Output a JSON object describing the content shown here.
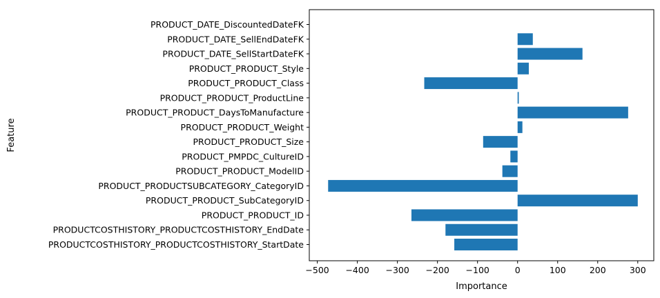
{
  "chart_data": {
    "type": "bar",
    "orientation": "horizontal",
    "xlabel": "Importance",
    "ylabel": "Feature",
    "xlim": [
      -520,
      340
    ],
    "xticks": [
      -500,
      -400,
      -300,
      -200,
      -100,
      0,
      100,
      200,
      300
    ],
    "xtick_labels": [
      "−500",
      "−400",
      "−300",
      "−200",
      "−100",
      "0",
      "100",
      "200",
      "300"
    ],
    "bar_color": "#1f77b4",
    "grid": false,
    "categories": [
      "PRODUCTCOSTHISTORY_PRODUCTCOSTHISTORY_StartDate",
      "PRODUCTCOSTHISTORY_PRODUCTCOSTHISTORY_EndDate",
      "PRODUCT_PRODUCT_ID",
      "PRODUCT_PRODUCT_SubCategoryID",
      "PRODUCT_PRODUCTSUBCATEGORY_CategoryID",
      "PRODUCT_PRODUCT_ModelID",
      "PRODUCT_PMPDC_CultureID",
      "PRODUCT_PRODUCT_Size",
      "PRODUCT_PRODUCT_Weight",
      "PRODUCT_PRODUCT_DaysToManufacture",
      "PRODUCT_PRODUCT_ProductLine",
      "PRODUCT_PRODUCT_Class",
      "PRODUCT_PRODUCT_Style",
      "PRODUCT_DATE_SellStartDateFK",
      "PRODUCT_DATE_SellEndDateFK",
      "PRODUCT_DATE_DiscountedDateFK"
    ],
    "values": [
      -158,
      -180,
      -265,
      300,
      -473,
      -38,
      -18,
      -86,
      12,
      276,
      3,
      -233,
      28,
      162,
      38,
      0
    ]
  }
}
